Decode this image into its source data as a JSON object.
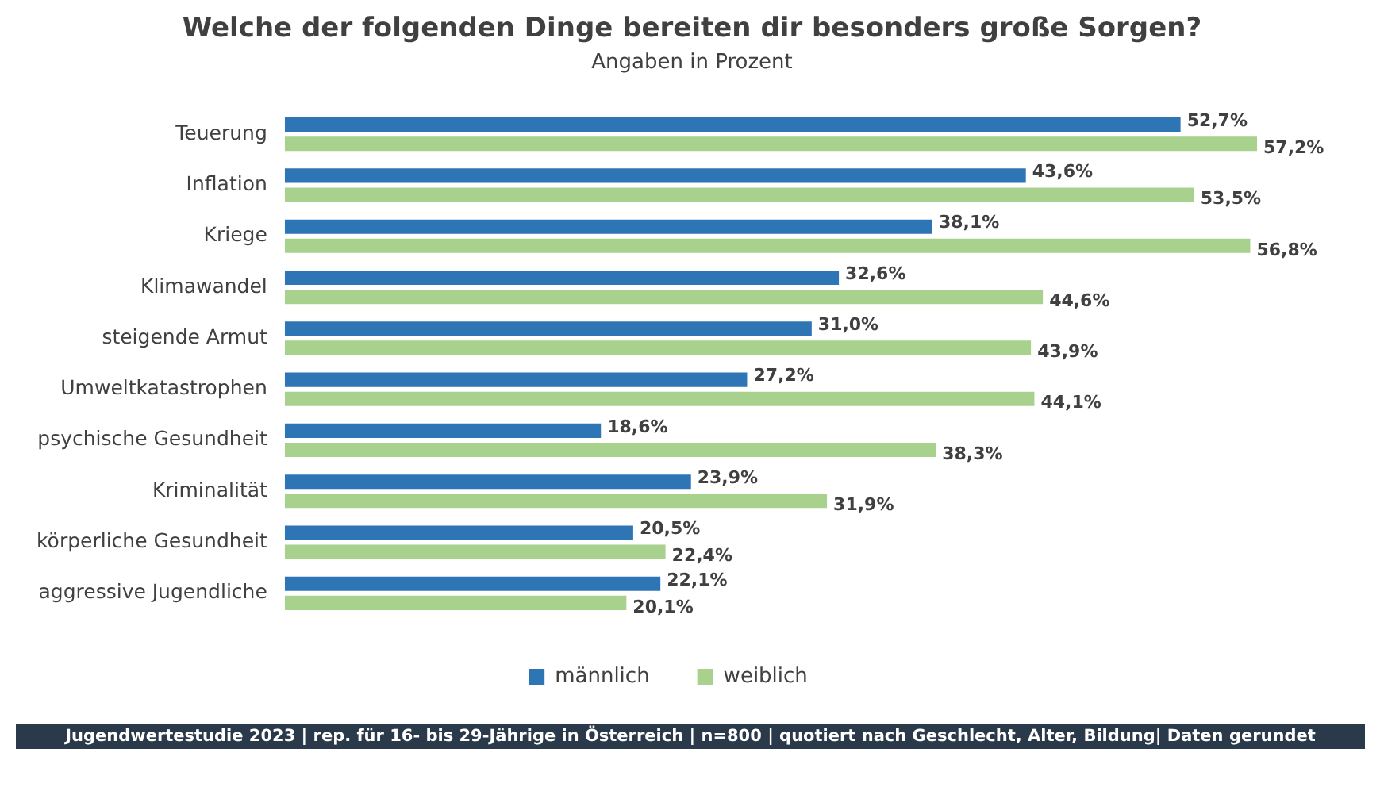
{
  "chart_data": {
    "type": "bar",
    "orientation": "horizontal",
    "title": "Welche der folgenden Dinge bereiten dir besonders große Sorgen?",
    "subtitle": "Angaben in Prozent",
    "categories": [
      "Teuerung",
      "Inflation",
      "Kriege",
      "Klimawandel",
      "steigende Armut",
      "Umweltkatastrophen",
      "psychische Gesundheit",
      "Kriminalität",
      "körperliche Gesundheit",
      "aggressive Jugendliche"
    ],
    "series": [
      {
        "name": "männlich",
        "color": "#2e75b6",
        "values": [
          52.7,
          43.6,
          38.1,
          32.6,
          31.0,
          27.2,
          18.6,
          23.9,
          20.5,
          22.1
        ],
        "value_labels": [
          "52,7%",
          "43,6%",
          "38,1%",
          "32,6%",
          "31,0%",
          "27,2%",
          "18,6%",
          "23,9%",
          "20,5%",
          "22,1%"
        ]
      },
      {
        "name": "weiblich",
        "color": "#a9d18e",
        "values": [
          57.2,
          53.5,
          56.8,
          44.6,
          43.9,
          44.1,
          38.3,
          31.9,
          22.4,
          20.1
        ],
        "value_labels": [
          "57,2%",
          "53,5%",
          "56,8%",
          "44,6%",
          "43,9%",
          "44,1%",
          "38,3%",
          "31,9%",
          "22,4%",
          "20,1%"
        ]
      }
    ],
    "legend": "bottom",
    "annotations": [
      "Jugendwertestudie 2023 | rep. für 16- bis 29-Jährige in Österreich | n=800 | quotiert nach Geschlecht, Alter, Bildung| Daten gerundet"
    ]
  }
}
